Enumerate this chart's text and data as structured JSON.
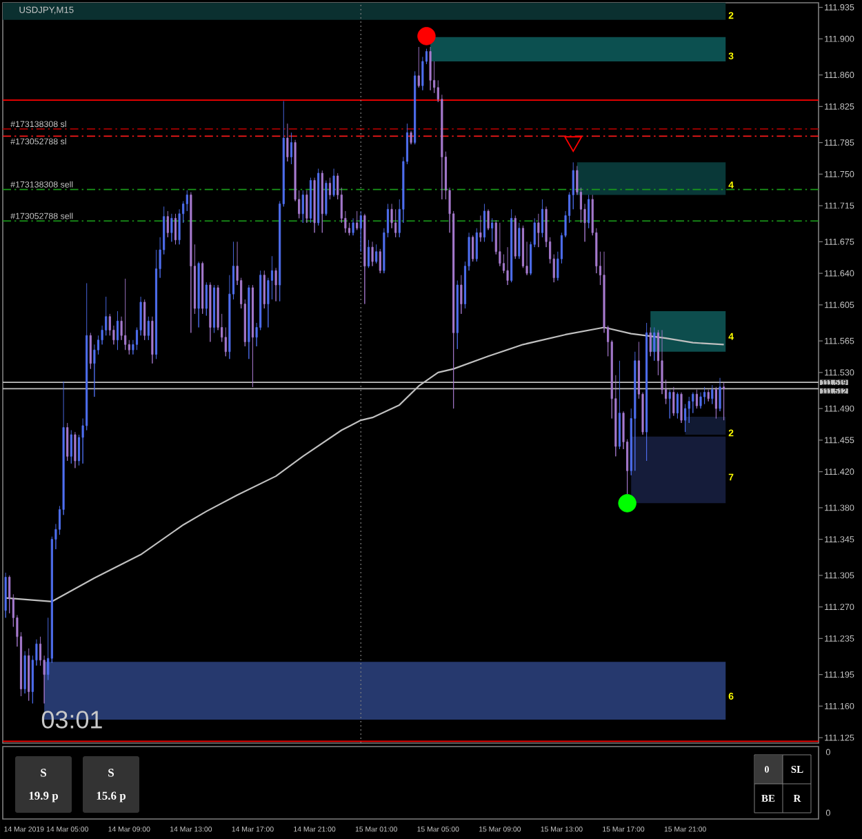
{
  "chart_data": {
    "type": "candlestick",
    "title": "USDJPY,M15",
    "x": [
      "2019-03-14T01:00",
      "2019-03-14T01:15",
      "2019-03-14T01:30",
      "2019-03-14T01:45",
      "2019-03-14T02:00",
      "2019-03-14T02:15",
      "2019-03-14T02:30",
      "2019-03-14T02:45",
      "2019-03-14T03:00",
      "2019-03-14T03:15",
      "2019-03-14T03:30",
      "2019-03-14T03:45",
      "2019-03-14T04:00",
      "2019-03-14T04:15",
      "2019-03-14T04:30",
      "2019-03-14T04:45",
      "2019-03-14T05:00",
      "2019-03-14T05:15",
      "2019-03-14T05:30",
      "2019-03-14T05:45",
      "2019-03-14T06:00",
      "2019-03-14T06:15",
      "2019-03-14T06:30",
      "2019-03-14T06:45",
      "2019-03-14T07:00",
      "2019-03-14T07:15",
      "2019-03-14T07:30",
      "2019-03-14T07:45",
      "2019-03-14T08:00",
      "2019-03-14T08:15",
      "2019-03-14T08:30",
      "2019-03-14T08:45",
      "2019-03-14T09:00",
      "2019-03-14T09:15",
      "2019-03-14T09:30",
      "2019-03-14T09:45",
      "2019-03-14T10:00",
      "2019-03-14T10:15",
      "2019-03-14T10:30",
      "2019-03-14T10:45",
      "2019-03-14T11:00",
      "2019-03-14T11:15",
      "2019-03-14T11:30",
      "2019-03-14T11:45",
      "2019-03-14T12:00",
      "2019-03-14T12:15",
      "2019-03-14T12:30",
      "2019-03-14T12:45",
      "2019-03-14T13:00",
      "2019-03-14T13:15",
      "2019-03-14T13:30",
      "2019-03-14T13:45",
      "2019-03-14T14:00",
      "2019-03-14T14:15",
      "2019-03-14T14:30",
      "2019-03-14T14:45",
      "2019-03-14T15:00",
      "2019-03-14T15:15",
      "2019-03-14T15:30",
      "2019-03-14T15:45",
      "2019-03-14T16:00",
      "2019-03-14T16:15",
      "2019-03-14T16:30",
      "2019-03-14T16:45",
      "2019-03-14T17:00",
      "2019-03-14T17:15",
      "2019-03-14T17:30",
      "2019-03-14T17:45",
      "2019-03-14T18:00",
      "2019-03-14T18:15",
      "2019-03-14T18:30",
      "2019-03-14T18:45",
      "2019-03-14T19:00",
      "2019-03-14T19:15",
      "2019-03-14T19:30",
      "2019-03-14T19:45",
      "2019-03-14T20:00",
      "2019-03-14T20:15",
      "2019-03-14T20:30",
      "2019-03-14T20:45",
      "2019-03-14T21:00",
      "2019-03-14T21:15",
      "2019-03-14T21:30",
      "2019-03-14T21:45",
      "2019-03-14T22:00",
      "2019-03-14T22:15",
      "2019-03-14T22:30",
      "2019-03-14T22:45",
      "2019-03-14T23:00",
      "2019-03-14T23:15",
      "2019-03-14T23:30",
      "2019-03-14T23:45",
      "2019-03-15T00:00",
      "2019-03-15T00:15",
      "2019-03-15T00:30",
      "2019-03-15T00:45",
      "2019-03-15T01:00",
      "2019-03-15T01:15",
      "2019-03-15T01:30",
      "2019-03-15T01:45",
      "2019-03-15T02:00",
      "2019-03-15T02:15",
      "2019-03-15T02:30",
      "2019-03-15T02:45",
      "2019-03-15T03:00",
      "2019-03-15T03:15",
      "2019-03-15T03:30",
      "2019-03-15T03:45",
      "2019-03-15T04:00",
      "2019-03-15T04:15",
      "2019-03-15T04:30",
      "2019-03-15T04:45",
      "2019-03-15T05:00",
      "2019-03-15T05:15",
      "2019-03-15T05:30",
      "2019-03-15T05:45",
      "2019-03-15T06:00",
      "2019-03-15T06:15",
      "2019-03-15T06:30",
      "2019-03-15T06:45",
      "2019-03-15T07:00",
      "2019-03-15T07:15",
      "2019-03-15T07:30",
      "2019-03-15T07:45",
      "2019-03-15T08:00",
      "2019-03-15T08:15",
      "2019-03-15T08:30",
      "2019-03-15T08:45",
      "2019-03-15T09:00",
      "2019-03-15T09:15",
      "2019-03-15T09:30",
      "2019-03-15T09:45",
      "2019-03-15T10:00",
      "2019-03-15T10:15",
      "2019-03-15T10:30",
      "2019-03-15T10:45",
      "2019-03-15T11:00",
      "2019-03-15T11:15",
      "2019-03-15T11:30",
      "2019-03-15T11:45",
      "2019-03-15T12:00",
      "2019-03-15T12:15",
      "2019-03-15T12:30",
      "2019-03-15T12:45",
      "2019-03-15T13:00",
      "2019-03-15T13:15",
      "2019-03-15T13:30",
      "2019-03-15T13:45",
      "2019-03-15T14:00",
      "2019-03-15T14:15",
      "2019-03-15T14:30",
      "2019-03-15T14:45",
      "2019-03-15T15:00",
      "2019-03-15T15:15",
      "2019-03-15T15:30",
      "2019-03-15T15:45",
      "2019-03-15T16:00",
      "2019-03-15T16:15",
      "2019-03-15T16:30",
      "2019-03-15T16:45",
      "2019-03-15T17:00",
      "2019-03-15T17:15",
      "2019-03-15T17:30",
      "2019-03-15T17:45",
      "2019-03-15T18:00",
      "2019-03-15T18:15",
      "2019-03-15T18:30",
      "2019-03-15T18:45",
      "2019-03-15T19:00",
      "2019-03-15T19:15",
      "2019-03-15T19:30",
      "2019-03-15T19:45",
      "2019-03-15T20:00",
      "2019-03-15T20:15",
      "2019-03-15T20:30",
      "2019-03-15T20:45",
      "2019-03-15T21:00",
      "2019-03-15T21:15",
      "2019-03-15T21:30",
      "2019-03-15T21:45",
      "2019-03-15T22:00",
      "2019-03-15T22:15",
      "2019-03-15T22:30",
      "2019-03-15T22:45",
      "2019-03-15T23:00",
      "2019-03-15T23:15",
      "2019-03-15T23:30"
    ],
    "ohlc": [
      [
        111.266,
        111.308,
        111.258,
        111.303
      ],
      [
        111.303,
        111.305,
        111.263,
        111.279
      ],
      [
        111.279,
        111.284,
        111.248,
        111.258
      ],
      [
        111.258,
        111.261,
        111.226,
        111.237
      ],
      [
        111.237,
        111.242,
        111.171,
        111.179
      ],
      [
        111.179,
        111.221,
        111.174,
        111.216
      ],
      [
        111.216,
        111.224,
        111.166,
        111.176
      ],
      [
        111.176,
        111.216,
        111.163,
        111.211
      ],
      [
        111.211,
        111.234,
        111.205,
        111.229
      ],
      [
        111.229,
        111.237,
        111.205,
        111.211
      ],
      [
        111.211,
        111.216,
        111.163,
        111.195
      ],
      [
        111.195,
        111.258,
        111.189,
        111.213
      ],
      [
        111.213,
        111.348,
        111.208,
        111.345
      ],
      [
        111.345,
        111.362,
        111.334,
        111.356
      ],
      [
        111.356,
        111.382,
        111.35,
        111.378
      ],
      [
        111.378,
        111.52,
        111.372,
        111.469
      ],
      [
        111.469,
        111.474,
        111.432,
        111.437
      ],
      [
        111.437,
        111.466,
        111.429,
        111.461
      ],
      [
        111.461,
        111.464,
        111.424,
        111.432
      ],
      [
        111.432,
        111.461,
        111.427,
        111.458
      ],
      [
        111.458,
        111.479,
        111.429,
        111.471
      ],
      [
        111.471,
        111.629,
        111.466,
        111.571
      ],
      [
        111.571,
        111.574,
        111.534,
        111.54
      ],
      [
        111.54,
        111.561,
        111.503,
        111.555
      ],
      [
        111.555,
        111.571,
        111.55,
        111.566
      ],
      [
        111.566,
        111.582,
        111.561,
        111.577
      ],
      [
        111.577,
        111.614,
        111.571,
        111.592
      ],
      [
        111.592,
        111.595,
        111.571,
        111.577
      ],
      [
        111.577,
        111.582,
        111.561,
        111.566
      ],
      [
        111.566,
        111.598,
        111.555,
        111.587
      ],
      [
        111.587,
        111.592,
        111.566,
        111.571
      ],
      [
        111.571,
        111.634,
        111.555,
        111.561
      ],
      [
        111.561,
        111.566,
        111.55,
        111.555
      ],
      [
        111.555,
        111.566,
        111.55,
        111.561
      ],
      [
        111.561,
        111.58,
        111.555,
        111.577
      ],
      [
        111.577,
        111.614,
        111.571,
        111.608
      ],
      [
        111.608,
        111.611,
        111.566,
        111.571
      ],
      [
        111.571,
        111.592,
        111.566,
        111.587
      ],
      [
        111.587,
        111.592,
        111.54,
        111.55
      ],
      [
        111.55,
        111.666,
        111.545,
        111.645
      ],
      [
        111.645,
        111.68,
        111.635,
        111.666
      ],
      [
        111.666,
        111.714,
        111.661,
        111.703
      ],
      [
        111.703,
        111.709,
        111.68,
        111.685
      ],
      [
        111.685,
        111.706,
        111.675,
        111.701
      ],
      [
        111.701,
        111.706,
        111.672,
        111.677
      ],
      [
        111.677,
        111.711,
        111.672,
        111.706
      ],
      [
        111.706,
        111.72,
        111.696,
        111.717
      ],
      [
        111.717,
        111.732,
        111.709,
        111.727
      ],
      [
        111.727,
        111.73,
        111.574,
        111.648
      ],
      [
        111.648,
        111.672,
        111.595,
        111.601
      ],
      [
        111.601,
        111.653,
        111.58,
        111.651
      ],
      [
        111.651,
        111.653,
        111.595,
        111.601
      ],
      [
        111.601,
        111.63,
        111.593,
        111.627
      ],
      [
        111.627,
        111.63,
        111.564,
        111.58
      ],
      [
        111.58,
        111.627,
        111.574,
        111.624
      ],
      [
        111.624,
        111.627,
        111.577,
        111.58
      ],
      [
        111.58,
        111.595,
        111.564,
        111.569
      ],
      [
        111.569,
        111.58,
        111.548,
        111.553
      ],
      [
        111.553,
        111.638,
        111.545,
        111.617
      ],
      [
        111.617,
        111.675,
        111.611,
        111.648
      ],
      [
        111.648,
        111.675,
        111.627,
        111.632
      ],
      [
        111.632,
        111.635,
        111.601,
        111.606
      ],
      [
        111.606,
        111.611,
        111.559,
        111.564
      ],
      [
        111.564,
        111.627,
        111.545,
        111.624
      ],
      [
        111.624,
        111.627,
        111.514,
        111.569
      ],
      [
        111.569,
        111.585,
        111.559,
        111.58
      ],
      [
        111.58,
        111.643,
        111.577,
        111.638
      ],
      [
        111.638,
        111.643,
        111.601,
        111.606
      ],
      [
        111.606,
        111.635,
        111.58,
        111.632
      ],
      [
        111.632,
        111.659,
        111.611,
        111.643
      ],
      [
        111.643,
        111.646,
        111.609,
        111.627
      ],
      [
        111.627,
        111.72,
        111.609,
        111.717
      ],
      [
        111.717,
        111.831,
        111.714,
        111.79
      ],
      [
        111.79,
        111.806,
        111.764,
        111.769
      ],
      [
        111.769,
        111.796,
        111.761,
        111.785
      ],
      [
        111.785,
        111.788,
        111.72,
        111.722
      ],
      [
        111.722,
        111.732,
        111.701,
        111.706
      ],
      [
        111.706,
        111.732,
        111.696,
        111.727
      ],
      [
        111.727,
        111.732,
        111.696,
        111.701
      ],
      [
        111.701,
        111.746,
        111.696,
        111.743
      ],
      [
        111.743,
        111.746,
        111.685,
        111.696
      ],
      [
        111.696,
        111.756,
        111.693,
        111.751
      ],
      [
        111.751,
        111.754,
        111.685,
        111.706
      ],
      [
        111.706,
        111.743,
        111.704,
        111.74
      ],
      [
        111.74,
        111.746,
        111.722,
        111.727
      ],
      [
        111.727,
        111.756,
        111.725,
        111.748
      ],
      [
        111.748,
        111.751,
        111.722,
        111.727
      ],
      [
        111.727,
        111.735,
        111.696,
        111.701
      ],
      [
        111.701,
        111.709,
        111.685,
        111.69
      ],
      [
        111.69,
        111.696,
        111.682,
        111.685
      ],
      [
        111.685,
        111.701,
        111.682,
        111.696
      ],
      [
        111.696,
        111.709,
        111.688,
        111.69
      ],
      [
        111.69,
        111.709,
        111.664,
        111.704
      ],
      [
        111.704,
        111.706,
        111.606,
        111.648
      ],
      [
        111.648,
        111.677,
        111.646,
        111.669
      ],
      [
        111.669,
        111.675,
        111.648,
        111.653
      ],
      [
        111.653,
        111.672,
        111.651,
        111.664
      ],
      [
        111.664,
        111.667,
        111.64,
        111.643
      ],
      [
        111.643,
        111.69,
        111.64,
        111.685
      ],
      [
        111.685,
        111.717,
        111.68,
        111.711
      ],
      [
        111.711,
        111.717,
        111.69,
        111.696
      ],
      [
        111.696,
        111.711,
        111.68,
        111.685
      ],
      [
        111.685,
        111.722,
        111.68,
        111.711
      ],
      [
        111.711,
        111.769,
        111.696,
        111.764
      ],
      [
        111.764,
        111.806,
        111.761,
        111.796
      ],
      [
        111.796,
        111.798,
        111.783,
        111.785
      ],
      [
        111.785,
        111.864,
        111.783,
        111.859
      ],
      [
        111.859,
        111.891,
        111.846,
        111.848
      ],
      [
        111.848,
        111.88,
        111.843,
        111.875
      ],
      [
        111.875,
        111.889,
        111.872,
        111.886
      ],
      [
        111.886,
        111.891,
        111.843,
        111.854
      ],
      [
        111.854,
        111.875,
        111.84,
        111.846
      ],
      [
        111.846,
        111.854,
        111.83,
        111.833
      ],
      [
        111.833,
        111.838,
        111.722,
        111.769
      ],
      [
        111.769,
        111.775,
        111.722,
        111.732
      ],
      [
        111.732,
        111.735,
        111.685,
        111.706
      ],
      [
        111.706,
        111.709,
        111.49,
        111.574
      ],
      [
        111.574,
        111.632,
        111.556,
        111.627
      ],
      [
        111.627,
        111.638,
        111.595,
        111.606
      ],
      [
        111.606,
        111.653,
        111.601,
        111.648
      ],
      [
        111.648,
        111.685,
        111.643,
        111.68
      ],
      [
        111.68,
        111.682,
        111.653,
        111.656
      ],
      [
        111.656,
        111.69,
        111.653,
        111.685
      ],
      [
        111.685,
        111.704,
        111.675,
        111.68
      ],
      [
        111.68,
        111.717,
        111.675,
        111.709
      ],
      [
        111.709,
        111.711,
        111.688,
        111.69
      ],
      [
        111.69,
        111.701,
        111.675,
        111.696
      ],
      [
        111.696,
        111.699,
        111.661,
        111.664
      ],
      [
        111.664,
        111.696,
        111.648,
        111.651
      ],
      [
        111.651,
        111.661,
        111.64,
        111.643
      ],
      [
        111.643,
        111.669,
        111.627,
        111.632
      ],
      [
        111.632,
        111.711,
        111.63,
        111.701
      ],
      [
        111.701,
        111.704,
        111.656,
        111.659
      ],
      [
        111.659,
        111.696,
        111.656,
        111.69
      ],
      [
        111.69,
        111.693,
        111.646,
        111.648
      ],
      [
        111.648,
        111.675,
        111.638,
        111.64
      ],
      [
        111.64,
        111.675,
        111.638,
        111.672
      ],
      [
        111.672,
        111.701,
        111.669,
        111.696
      ],
      [
        111.696,
        111.706,
        111.669,
        111.685
      ],
      [
        111.685,
        111.722,
        111.68,
        111.711
      ],
      [
        111.711,
        111.714,
        111.669,
        111.675
      ],
      [
        111.675,
        111.68,
        111.651,
        111.656
      ],
      [
        111.656,
        111.661,
        111.63,
        111.635
      ],
      [
        111.635,
        111.664,
        111.632,
        111.656
      ],
      [
        111.656,
        111.685,
        111.651,
        111.682
      ],
      [
        111.682,
        111.709,
        111.68,
        111.704
      ],
      [
        111.704,
        111.73,
        111.696,
        111.727
      ],
      [
        111.727,
        111.763,
        111.711,
        111.754
      ],
      [
        111.754,
        111.759,
        111.727,
        111.73
      ],
      [
        111.73,
        111.735,
        111.696,
        111.711
      ],
      [
        111.711,
        111.717,
        111.675,
        111.696
      ],
      [
        111.696,
        111.727,
        111.69,
        111.722
      ],
      [
        111.722,
        111.727,
        111.682,
        111.685
      ],
      [
        111.685,
        111.69,
        111.64,
        111.648
      ],
      [
        111.648,
        111.664,
        111.627,
        111.638
      ],
      [
        111.638,
        111.664,
        111.574,
        111.58
      ],
      [
        111.58,
        111.582,
        111.548,
        111.564
      ],
      [
        111.564,
        111.566,
        111.479,
        111.501
      ],
      [
        111.501,
        111.527,
        111.437,
        111.448
      ],
      [
        111.448,
        111.543,
        111.445,
        111.485
      ],
      [
        111.485,
        111.487,
        111.445,
        111.453
      ],
      [
        111.453,
        111.456,
        111.395,
        111.421
      ],
      [
        111.421,
        111.49,
        111.416,
        111.479
      ],
      [
        111.479,
        111.553,
        111.421,
        111.543
      ],
      [
        111.543,
        111.564,
        111.501,
        111.506
      ],
      [
        111.506,
        111.508,
        111.461,
        111.464
      ],
      [
        111.464,
        111.585,
        111.432,
        111.574
      ],
      [
        111.574,
        111.58,
        111.548,
        111.553
      ],
      [
        111.553,
        111.58,
        111.543,
        111.574
      ],
      [
        111.574,
        111.577,
        111.527,
        111.543
      ],
      [
        111.543,
        111.577,
        111.506,
        111.511
      ],
      [
        111.511,
        111.522,
        111.495,
        111.501
      ],
      [
        111.501,
        111.511,
        111.479,
        111.508
      ],
      [
        111.508,
        111.514,
        111.482,
        111.485
      ],
      [
        111.485,
        111.508,
        111.479,
        111.506
      ],
      [
        111.506,
        111.508,
        111.474,
        111.477
      ],
      [
        111.477,
        111.495,
        111.464,
        111.49
      ],
      [
        111.49,
        111.503,
        111.474,
        111.498
      ],
      [
        111.498,
        111.508,
        111.485,
        111.506
      ],
      [
        111.506,
        111.511,
        111.49,
        111.493
      ],
      [
        111.493,
        111.508,
        111.49,
        111.503
      ],
      [
        111.503,
        111.514,
        111.495,
        111.508
      ],
      [
        111.508,
        111.511,
        111.498,
        111.501
      ],
      [
        111.501,
        111.516,
        111.495,
        111.511
      ],
      [
        111.511,
        111.514,
        111.479,
        111.49
      ],
      [
        111.49,
        111.524,
        111.487,
        111.514
      ],
      [
        111.514,
        111.519,
        111.477,
        111.512
      ]
    ],
    "colors": [
      "#4f6ff0",
      "#a77bcf",
      "#a77bcf",
      "#a77bcf",
      "#a77bcf",
      "#4f6ff0",
      "#a77bcf",
      "#4f6ff0",
      "#4f6ff0",
      "#a77bcf",
      "#a77bcf",
      "#4f6ff0",
      "#4f6ff0",
      "#4f6ff0",
      "#4f6ff0",
      "#4f6ff0",
      "#a77bcf",
      "#4f6ff0",
      "#a77bcf",
      "#4f6ff0",
      "#4f6ff0",
      "#4f6ff0",
      "#a77bcf",
      "#4f6ff0",
      "#4f6ff0",
      "#4f6ff0",
      "#4f6ff0",
      "#a77bcf",
      "#a77bcf",
      "#4f6ff0",
      "#a77bcf",
      "#a77bcf",
      "#a77bcf",
      "#4f6ff0",
      "#4f6ff0",
      "#4f6ff0",
      "#a77bcf",
      "#4f6ff0",
      "#a77bcf",
      "#4f6ff0",
      "#4f6ff0",
      "#4f6ff0",
      "#a77bcf",
      "#4f6ff0",
      "#a77bcf",
      "#4f6ff0",
      "#4f6ff0",
      "#4f6ff0",
      "#a77bcf",
      "#a77bcf",
      "#4f6ff0",
      "#a77bcf",
      "#4f6ff0",
      "#a77bcf",
      "#4f6ff0",
      "#a77bcf",
      "#a77bcf",
      "#a77bcf",
      "#4f6ff0",
      "#4f6ff0",
      "#a77bcf",
      "#a77bcf",
      "#a77bcf",
      "#4f6ff0",
      "#a77bcf",
      "#4f6ff0",
      "#4f6ff0",
      "#a77bcf",
      "#4f6ff0",
      "#4f6ff0",
      "#a77bcf",
      "#4f6ff0",
      "#4f6ff0",
      "#a77bcf",
      "#4f6ff0",
      "#a77bcf",
      "#a77bcf",
      "#4f6ff0",
      "#a77bcf",
      "#4f6ff0",
      "#a77bcf",
      "#4f6ff0",
      "#a77bcf",
      "#4f6ff0",
      "#a77bcf",
      "#4f6ff0",
      "#a77bcf",
      "#a77bcf",
      "#a77bcf",
      "#a77bcf",
      "#4f6ff0",
      "#a77bcf",
      "#4f6ff0",
      "#a77bcf",
      "#4f6ff0",
      "#a77bcf",
      "#4f6ff0",
      "#a77bcf",
      "#4f6ff0",
      "#4f6ff0",
      "#a77bcf",
      "#a77bcf",
      "#4f6ff0",
      "#4f6ff0",
      "#4f6ff0",
      "#a77bcf",
      "#4f6ff0",
      "#a77bcf",
      "#4f6ff0",
      "#4f6ff0",
      "#a77bcf",
      "#a77bcf",
      "#a77bcf",
      "#a77bcf",
      "#a77bcf",
      "#a77bcf",
      "#a77bcf",
      "#4f6ff0",
      "#a77bcf",
      "#4f6ff0",
      "#4f6ff0",
      "#a77bcf",
      "#4f6ff0",
      "#a77bcf",
      "#4f6ff0",
      "#a77bcf",
      "#4f6ff0",
      "#a77bcf",
      "#a77bcf",
      "#a77bcf",
      "#a77bcf",
      "#4f6ff0",
      "#a77bcf",
      "#4f6ff0",
      "#a77bcf",
      "#a77bcf",
      "#4f6ff0",
      "#4f6ff0",
      "#a77bcf",
      "#4f6ff0",
      "#a77bcf",
      "#a77bcf",
      "#a77bcf",
      "#4f6ff0",
      "#4f6ff0",
      "#4f6ff0",
      "#4f6ff0",
      "#4f6ff0",
      "#a77bcf",
      "#a77bcf",
      "#a77bcf",
      "#4f6ff0",
      "#a77bcf",
      "#a77bcf",
      "#a77bcf",
      "#a77bcf",
      "#a77bcf",
      "#a77bcf",
      "#a77bcf",
      "#4f6ff0",
      "#a77bcf",
      "#a77bcf",
      "#4f6ff0",
      "#4f6ff0",
      "#a77bcf",
      "#a77bcf",
      "#4f6ff0",
      "#a77bcf",
      "#4f6ff0",
      "#a77bcf",
      "#a77bcf",
      "#a77bcf",
      "#4f6ff0",
      "#a77bcf",
      "#4f6ff0",
      "#a77bcf",
      "#4f6ff0",
      "#4f6ff0",
      "#4f6ff0",
      "#a77bcf",
      "#4f6ff0",
      "#4f6ff0",
      "#a77bcf",
      "#4f6ff0",
      "#a77bcf",
      "#4f6ff0",
      "#a77bcf"
    ],
    "series": [
      {
        "type": "area",
        "x": [
          "2019-03-14T00:49",
          "2019-03-15T23:37"
        ],
        "lower": [
          111.921,
          111.921
        ],
        "upper": [
          111.94,
          111.94
        ],
        "values": [
          null,
          null
        ],
        "color": "#0b3030"
      },
      {
        "type": "area",
        "x": [
          "2019-03-15T04:30",
          "2019-03-15T23:37"
        ],
        "lower": [
          111.875,
          111.875
        ],
        "upper": [
          111.902,
          111.902
        ],
        "values": [
          null,
          null
        ],
        "color": "#0c5050"
      },
      {
        "type": "area",
        "x": [
          "2019-03-15T14:00",
          "2019-03-15T23:37"
        ],
        "lower": [
          111.727,
          111.727
        ],
        "upper": [
          111.763,
          111.763
        ],
        "values": [
          null,
          null
        ],
        "color": "#093838"
      },
      {
        "type": "area",
        "x": [
          "2019-03-15T18:45",
          "2019-03-15T23:37"
        ],
        "lower": [
          111.553,
          111.553
        ],
        "upper": [
          111.598,
          111.598
        ],
        "values": [
          null,
          null
        ],
        "color": "#0d4d4d"
      },
      {
        "type": "area",
        "x": [
          "2019-03-15T21:00",
          "2019-03-15T23:37"
        ],
        "lower": [
          111.461,
          111.461
        ],
        "upper": [
          111.481,
          111.481
        ],
        "values": [
          null,
          null
        ],
        "color": "#111a33"
      },
      {
        "type": "area",
        "x": [
          "2019-03-15T17:30",
          "2019-03-15T23:37"
        ],
        "lower": [
          111.385,
          111.385
        ],
        "upper": [
          111.459,
          111.459
        ],
        "values": [
          null,
          null
        ],
        "color": "#151c3a"
      },
      {
        "type": "area",
        "x": [
          "2019-03-14T03:30",
          "2019-03-15T23:37"
        ],
        "lower": [
          111.145,
          111.145
        ],
        "upper": [
          111.209,
          111.209
        ],
        "values": [
          null,
          null
        ],
        "color": "#26396e"
      },
      {
        "type": "line",
        "x": [
          "2019-03-14T01:00",
          "2019-03-14T04:00",
          "2019-03-14T06:45",
          "2019-03-14T09:45",
          "2019-03-14T12:30",
          "2019-03-14T14:00",
          "2019-03-14T16:00",
          "2019-03-14T18:30",
          "2019-03-14T20:15",
          "2019-03-14T22:45",
          "2019-03-15T00:00",
          "2019-03-15T00:45",
          "2019-03-15T02:30",
          "2019-03-15T03:45",
          "2019-03-15T05:00",
          "2019-03-15T06:00",
          "2019-03-15T08:15",
          "2019-03-15T10:30",
          "2019-03-15T13:15",
          "2019-03-15T15:45",
          "2019-03-15T17:30",
          "2019-03-15T19:45",
          "2019-03-15T21:30",
          "2019-03-15T23:30"
        ],
        "values": [
          111.28,
          111.276,
          111.302,
          111.328,
          111.361,
          111.376,
          111.394,
          111.415,
          111.437,
          111.466,
          111.477,
          111.48,
          111.494,
          111.515,
          111.53,
          111.534,
          111.548,
          111.561,
          111.572,
          111.58,
          111.573,
          111.568,
          111.563,
          111.561
        ],
        "color": "#c0c0c0"
      },
      {
        "type": "scatter",
        "x": [
          "2019-03-15T04:15"
        ],
        "values": [
          111.903
        ],
        "color": "#ff0000",
        "marker": "circle"
      },
      {
        "type": "scatter",
        "x": [
          "2019-03-15T17:15"
        ],
        "values": [
          111.385
        ],
        "color": "#00ff00",
        "marker": "circle"
      },
      {
        "type": "scatter",
        "x": [
          "2019-03-15T13:45"
        ],
        "values": [
          111.786
        ],
        "color": "#ff0000",
        "marker": "triangle"
      }
    ],
    "ref_lines": [
      {
        "axis": "y",
        "value": 111.832,
        "color": "#ff0000",
        "line_style": "solid"
      },
      {
        "axis": "y",
        "value": 111.8,
        "label": "#173138308 sl",
        "color": "#a80000",
        "line_style": "dashdot"
      },
      {
        "axis": "y",
        "value": 111.792,
        "label": "#173052788 sl",
        "color": "#ff1a1a",
        "line_style": "dashdot"
      },
      {
        "axis": "y",
        "value": 111.733,
        "label": "#173138308 sell",
        "color": "#1a9a1a",
        "line_style": "dashdot"
      },
      {
        "axis": "y",
        "value": 111.698,
        "label": "#173052788 sell",
        "color": "#1a9a1a",
        "line_style": "dashdot"
      },
      {
        "axis": "y",
        "value": 111.519,
        "label": "111.519",
        "color": "#c0c0c0",
        "line_style": "solid"
      },
      {
        "axis": "y",
        "value": 111.512,
        "label": "111.512",
        "color": "#c0c0c0",
        "line_style": "solid"
      },
      {
        "axis": "y",
        "value": 111.121,
        "color": "#ff0000",
        "line_style": "solid"
      },
      {
        "axis": "x",
        "value": "2019-03-15T00:00",
        "color": "#808080",
        "line_style": "dotted"
      }
    ],
    "xlim": [
      "2019-03-14T00:49",
      "2019-03-16T05:38"
    ],
    "xticks": [
      {
        "value": "2019-03-14T01:00",
        "label": "14 Mar 2019"
      },
      {
        "value": "2019-03-14T05:00",
        "label": "14 Mar 05:00"
      },
      {
        "value": "2019-03-14T09:00",
        "label": "14 Mar 09:00"
      },
      {
        "value": "2019-03-14T13:00",
        "label": "14 Mar 13:00"
      },
      {
        "value": "2019-03-14T17:00",
        "label": "14 Mar 17:00"
      },
      {
        "value": "2019-03-14T21:00",
        "label": "14 Mar 21:00"
      },
      {
        "value": "2019-03-15T01:00",
        "label": "15 Mar 01:00"
      },
      {
        "value": "2019-03-15T05:00",
        "label": "15 Mar 05:00"
      },
      {
        "value": "2019-03-15T09:00",
        "label": "15 Mar 09:00"
      },
      {
        "value": "2019-03-15T13:00",
        "label": "15 Mar 13:00"
      },
      {
        "value": "2019-03-15T17:00",
        "label": "15 Mar 17:00"
      },
      {
        "value": "2019-03-15T21:00",
        "label": "15 Mar 21:00"
      }
    ],
    "ylim": [
      111.119,
      111.94
    ],
    "yticks": [
      111.935,
      {
        "value": 111.9,
        "label": "111.900"
      },
      {
        "value": 111.86,
        "label": "111.860"
      },
      111.825,
      111.785,
      {
        "value": 111.75,
        "label": "111.750"
      },
      111.715,
      111.675,
      {
        "value": 111.64,
        "label": "111.640"
      },
      111.605,
      111.565,
      {
        "value": 111.53,
        "label": "111.530"
      },
      {
        "value": 111.49,
        "label": "111.490"
      },
      111.455,
      {
        "value": 111.42,
        "label": "111.420"
      },
      {
        "value": 111.38,
        "label": "111.380"
      },
      111.345,
      111.305,
      {
        "value": 111.27,
        "label": "111.270"
      },
      111.235,
      111.195,
      {
        "value": 111.16,
        "label": "111.160"
      },
      111.125
    ],
    "annotations": [
      "03:01",
      "S",
      "19.9 p",
      "S",
      "15.6 p",
      "0",
      "SL",
      "BE",
      "R",
      "0",
      "0",
      {
        "text": "2",
        "x": "2019-03-15T23:45",
        "y": 111.926
      },
      {
        "text": "3",
        "x": "2019-03-15T23:45",
        "y": 111.881
      },
      {
        "text": "4",
        "x": "2019-03-15T23:45",
        "y": 111.738
      },
      {
        "text": "4",
        "x": "2019-03-15T23:45",
        "y": 111.57
      },
      {
        "text": "2",
        "x": "2019-03-15T23:45",
        "y": 111.463
      },
      {
        "text": "7",
        "x": "2019-03-15T23:45",
        "y": 111.414
      },
      {
        "text": "6",
        "x": "2019-03-15T23:45",
        "y": 111.171
      }
    ]
  }
}
